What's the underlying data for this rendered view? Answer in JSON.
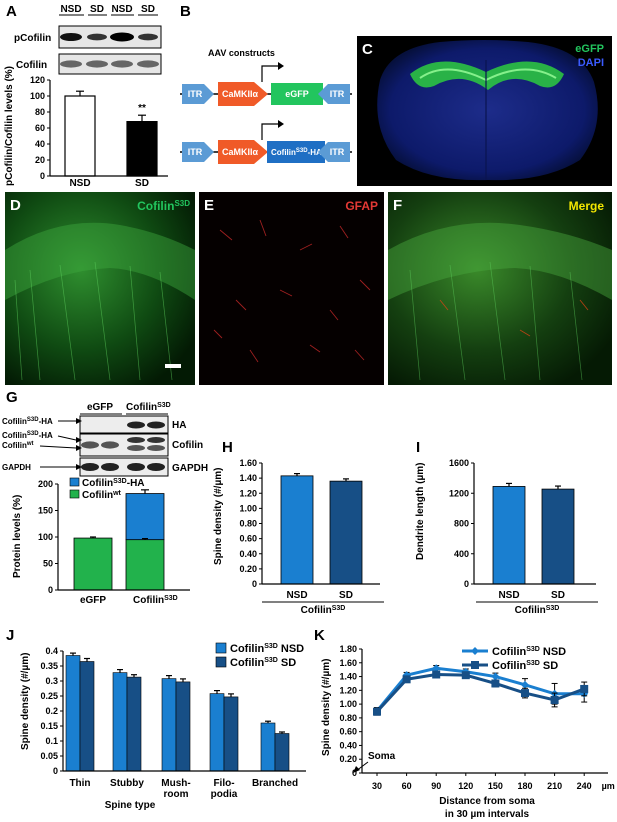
{
  "panels": {
    "A": "A",
    "B": "B",
    "C": "C",
    "D": "D",
    "E": "E",
    "F": "F",
    "G": "G",
    "H": "H",
    "I": "I",
    "J": "J",
    "K": "K"
  },
  "colors": {
    "blue_light": "#1a7fd0",
    "blue_dark": "#174f86",
    "green": "#22b24c",
    "orange": "#f05a28",
    "itr": "#5b9bd5",
    "egfp_green": "#22c55e",
    "gfap_red": "#e53935",
    "merge_yellow": "#f2e600"
  },
  "panelA": {
    "lanes": [
      "NSD",
      "SD",
      "NSD",
      "SD"
    ],
    "blots": [
      "pCofilin",
      "Cofilin"
    ],
    "ylabel": "pCofilin/Cofilin levels (%)",
    "yticks": [
      "0",
      "20",
      "40",
      "60",
      "80",
      "100",
      "120"
    ],
    "significance": "**"
  },
  "panelB": {
    "title": "AAV constructs",
    "itr": "ITR",
    "promoter": "CaMKIIα",
    "egfp": "eGFP",
    "cofilin_base": "Cofilin",
    "cofilin_sup": "S3D",
    "cofilin_tail": "-HA"
  },
  "panelC": {
    "egfp": "eGFP",
    "dapi": "DAPI"
  },
  "panelD": {
    "label_base": "Cofilin",
    "label_sup": "S3D"
  },
  "panelE": {
    "label": "GFAP"
  },
  "panelF": {
    "label": "Merge"
  },
  "panelG": {
    "lanes": [
      "eGFP",
      "Cofilin",
      "S3D"
    ],
    "row1_right": "HA",
    "row2_right": "Cofilin",
    "row3_right": "GAPDH",
    "ha_arrow_label": [
      "Cofilin",
      "S3D",
      "-HA"
    ],
    "cof_arrow_label1": [
      "Cofilin",
      "S3D",
      "-HA"
    ],
    "cof_arrow_label2": [
      "Cofilin",
      "wt"
    ],
    "gapdh_arrow_label": "GAPDH",
    "legend": [
      [
        "Cofilin",
        "S3D",
        "-HA"
      ],
      [
        "Cofilin",
        "wt",
        ""
      ]
    ],
    "ylabel": "Protein levels (%)",
    "yticks": [
      "0",
      "50",
      "100",
      "150",
      "200"
    ],
    "xlabels": [
      "eGFP",
      "Cofilin"
    ],
    "xsup": "S3D"
  },
  "panelH": {
    "ylabel": "Spine density (#/µm)",
    "yticks": [
      "0",
      "0.20",
      "0.40",
      "0.60",
      "0.80",
      "1.00",
      "1.20",
      "1.40",
      "1.60"
    ],
    "xcats": [
      "NSD",
      "SD"
    ],
    "group_base": "Cofilin",
    "group_sup": "S3D"
  },
  "panelI": {
    "ylabel": "Dendrite length (µm)",
    "yticks": [
      "0",
      "400",
      "800",
      "1200",
      "1600"
    ],
    "xcats": [
      "NSD",
      "SD"
    ],
    "group_base": "Cofilin",
    "group_sup": "S3D"
  },
  "panelJ": {
    "ylabel": "Spine density (#/µm)",
    "yticks": [
      "0",
      "0.05",
      "0.1",
      "0.15",
      "0.2",
      "0.25",
      "0.3",
      "0.35",
      "0.4"
    ],
    "xcats": [
      "Thin",
      "Stubby",
      "Mush-",
      "Filo-",
      "Branched"
    ],
    "xcats2": [
      "",
      "",
      "room",
      "podia",
      ""
    ],
    "xtitle": "Spine type",
    "legend": [
      [
        "Cofilin",
        "S3D",
        " NSD"
      ],
      [
        "Cofilin",
        "S3D",
        " SD"
      ]
    ]
  },
  "panelK": {
    "ylabel": "Spine density (#/µm)",
    "yticks": [
      "0",
      "0.20",
      "0.40",
      "0.60",
      "0.80",
      "1.00",
      "1.20",
      "1.40",
      "1.60",
      "1.80"
    ],
    "xticks": [
      "30",
      "60",
      "90",
      "120",
      "150",
      "180",
      "210",
      "240",
      "µm"
    ],
    "xtitle1": "Distance from soma",
    "xtitle2": "in 30 µm  intervals",
    "soma": "Soma",
    "legend": [
      [
        "Cofilin",
        "S3D",
        " NSD"
      ],
      [
        "Cofilin",
        "S3D",
        " SD"
      ]
    ]
  },
  "chart_data": [
    {
      "panel": "A",
      "type": "bar",
      "categories": [
        "NSD",
        "SD"
      ],
      "values": [
        100,
        68
      ],
      "errors": [
        6,
        8
      ],
      "ylim": [
        0,
        120
      ],
      "ylabel": "pCofilin/Cofilin levels (%)"
    },
    {
      "panel": "G",
      "type": "bar",
      "stacked": true,
      "categories": [
        "eGFP",
        "Cofilin S3D"
      ],
      "series": [
        {
          "name": "Cofilin S3D-HA",
          "values": [
            0,
            87
          ]
        },
        {
          "name": "Cofilin wt",
          "values": [
            98,
            95
          ]
        }
      ],
      "ylim": [
        0,
        200
      ],
      "ylabel": "Protein levels (%)"
    },
    {
      "panel": "H",
      "type": "bar",
      "categories": [
        "NSD",
        "SD"
      ],
      "values": [
        1.43,
        1.36
      ],
      "errors": [
        0.03,
        0.03
      ],
      "ylim": [
        0,
        1.6
      ],
      "ylabel": "Spine density (#/µm)"
    },
    {
      "panel": "I",
      "type": "bar",
      "categories": [
        "NSD",
        "SD"
      ],
      "values": [
        1290,
        1255
      ],
      "errors": [
        40,
        40
      ],
      "ylim": [
        0,
        1600
      ],
      "ylabel": "Dendrite length (µm)"
    },
    {
      "panel": "J",
      "type": "bar",
      "categories": [
        "Thin",
        "Stubby",
        "Mush-room",
        "Filo-podia",
        "Branched"
      ],
      "series": [
        {
          "name": "Cofilin S3D NSD",
          "values": [
            0.385,
            0.328,
            0.308,
            0.258,
            0.16
          ],
          "errors": [
            0.008,
            0.01,
            0.01,
            0.01,
            0.006
          ]
        },
        {
          "name": "Cofilin S3D SD",
          "values": [
            0.365,
            0.313,
            0.297,
            0.247,
            0.125
          ],
          "errors": [
            0.01,
            0.008,
            0.01,
            0.01,
            0.005
          ]
        }
      ],
      "ylim": [
        0,
        0.4
      ],
      "ylabel": "Spine density (#/µm)",
      "xlabel": "Spine type"
    },
    {
      "panel": "K",
      "type": "line",
      "x": [
        30,
        60,
        90,
        120,
        150,
        180,
        210,
        240
      ],
      "series": [
        {
          "name": "Cofilin S3D NSD",
          "values": [
            0.9,
            1.42,
            1.52,
            1.47,
            1.4,
            1.28,
            1.15,
            1.15
          ],
          "errors": [
            0.05,
            0.04,
            0.04,
            0.04,
            0.05,
            0.09,
            0.15,
            0.12
          ]
        },
        {
          "name": "Cofilin S3D SD",
          "values": [
            0.89,
            1.36,
            1.43,
            1.42,
            1.3,
            1.16,
            1.06,
            1.22
          ],
          "errors": [
            0.05,
            0.04,
            0.04,
            0.04,
            0.05,
            0.07,
            0.1,
            0.1
          ]
        }
      ],
      "ylim": [
        0,
        1.8
      ],
      "ylabel": "Spine density (#/µm)",
      "xlabel": "Distance from soma in 30 µm intervals"
    }
  ]
}
